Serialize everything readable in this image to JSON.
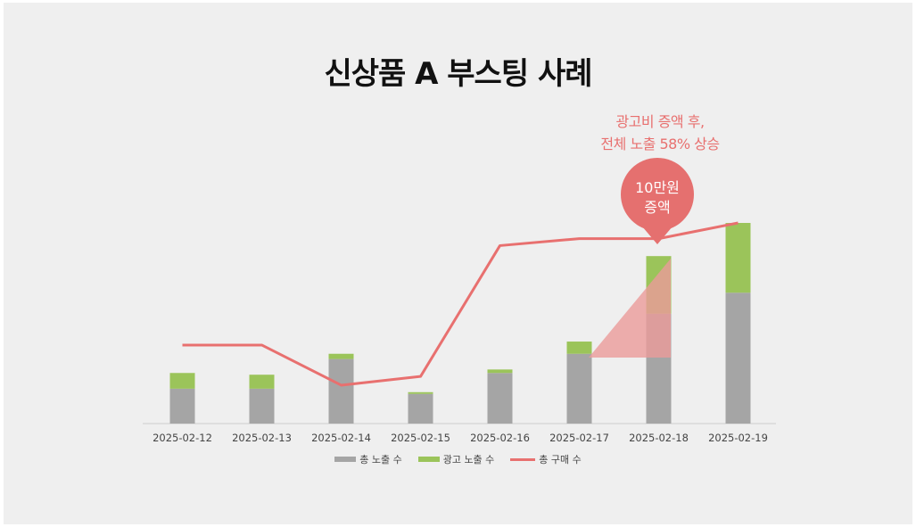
{
  "chart_data": {
    "type": "bar",
    "title": "신상품 A 부스팅 사례",
    "categories": [
      "2025-02-12",
      "2025-02-13",
      "2025-02-14",
      "2025-02-15",
      "2025-02-16",
      "2025-02-17",
      "2025-02-18",
      "2025-02-19"
    ],
    "series": [
      {
        "name": "총 노출 수",
        "kind": "bar",
        "stack": "exposure",
        "color": "#a5a5a5",
        "values": [
          20,
          20,
          37,
          17,
          29,
          40,
          63,
          75
        ]
      },
      {
        "name": "광고 노출 수",
        "kind": "bar",
        "stack": "exposure",
        "color": "#9bc45a",
        "values": [
          9,
          8,
          3,
          1,
          2,
          7,
          33,
          40
        ]
      },
      {
        "name": "총 구매 수",
        "kind": "line",
        "color": "#e8706f",
        "values": [
          45,
          45,
          22,
          27,
          102,
          106,
          106,
          115
        ]
      }
    ],
    "ylim_bars": [
      0,
      115
    ],
    "ylim_line": [
      0,
      115
    ],
    "grid": false,
    "legend": "bottom",
    "annotations": {
      "note_lines": [
        "광고비 증액 후,",
        "전체 노출 58% 상승"
      ],
      "callout_lines": [
        "10만원",
        "증액"
      ]
    }
  },
  "colors": {
    "background": "#efefef",
    "accent": "#e8706f",
    "callout": "#e5706f",
    "triangle": "#eb9b9a"
  }
}
